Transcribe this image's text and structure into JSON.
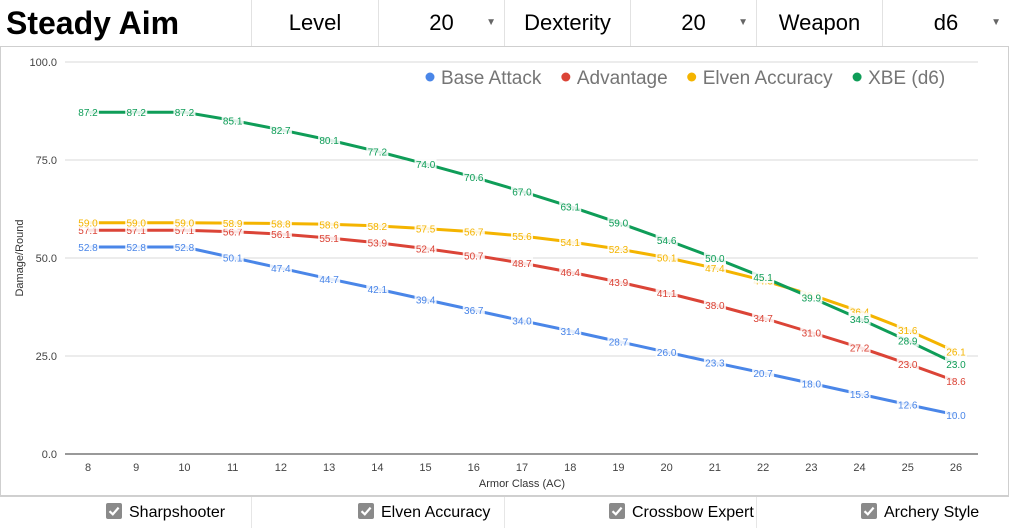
{
  "header": {
    "title": "Steady Aim",
    "level_label": "Level",
    "level_value": "20",
    "dex_label": "Dexterity",
    "dex_value": "20",
    "weapon_label": "Weapon",
    "weapon_value": "d6"
  },
  "footer": {
    "checkboxes": [
      {
        "label": "Sharpshooter",
        "checked": true
      },
      {
        "label": "Elven Accuracy",
        "checked": true
      },
      {
        "label": "Crossbow Expert",
        "checked": true
      },
      {
        "label": "Archery Style",
        "checked": true
      }
    ]
  },
  "chart_data": {
    "type": "line",
    "title": "",
    "xlabel": "Armor Class (AC)",
    "ylabel": "Damage/Round",
    "x": [
      8,
      9,
      10,
      11,
      12,
      13,
      14,
      15,
      16,
      17,
      18,
      19,
      20,
      21,
      22,
      23,
      24,
      25,
      26
    ],
    "ylim": [
      0,
      100
    ],
    "yticks": [
      "0.0",
      "25.0",
      "50.0",
      "75.0",
      "100.0"
    ],
    "grid": true,
    "legend": "top-right",
    "series": [
      {
        "name": "Base Attack",
        "color": "#4a86e8",
        "values": [
          52.8,
          52.8,
          52.8,
          50.1,
          47.4,
          44.7,
          42.1,
          39.4,
          36.7,
          34.0,
          31.4,
          28.7,
          26.0,
          23.3,
          20.7,
          18.0,
          15.3,
          12.6,
          10.0
        ],
        "labels": [
          "52.8",
          "52.8",
          "52.8",
          "50.1",
          "47.4",
          "44.7",
          "42.1",
          "39.4",
          "36.7",
          "34.0",
          "31.4",
          "28.7",
          "26.0",
          "23.3",
          "20.7",
          "18.0",
          "15.3",
          "12.6",
          "10.0"
        ]
      },
      {
        "name": "Advantage",
        "color": "#db4437",
        "values": [
          57.1,
          57.1,
          57.1,
          56.7,
          56.1,
          55.1,
          53.9,
          52.4,
          50.7,
          48.7,
          46.4,
          43.9,
          41.1,
          38.0,
          34.7,
          31.0,
          27.2,
          23.0,
          18.6
        ],
        "labels": [
          "57.1",
          "57.1",
          "57.1",
          "56.7",
          "56.1",
          "55.1",
          "53.9",
          "52.4",
          "50.7",
          "48.7",
          "46.4",
          "43.9",
          "41.1",
          "38.0",
          "34.7",
          "31.0",
          "27.2",
          "23.0",
          "18.6"
        ]
      },
      {
        "name": "Elven Accuracy",
        "color": "#f4b400",
        "values": [
          59.0,
          59.0,
          59.0,
          58.9,
          58.8,
          58.6,
          58.2,
          57.5,
          56.7,
          55.6,
          54.1,
          52.3,
          50.1,
          47.4,
          44.3,
          40.6,
          36.4,
          31.6,
          26.1
        ],
        "labels": [
          "59.0",
          "59.0",
          "59.0",
          "58.9",
          "58.8",
          "58.6",
          "58.2",
          "57.5",
          "56.7",
          "55.6",
          "54.1",
          "52.3",
          "50.1",
          "47.4",
          "44.3",
          "40.6",
          "36.4",
          "31.6",
          "26.1"
        ]
      },
      {
        "name": "XBE (d6)",
        "color": "#0f9d58",
        "values": [
          87.2,
          87.2,
          87.2,
          85.1,
          82.7,
          80.1,
          77.2,
          74.0,
          70.6,
          67.0,
          63.1,
          59.0,
          54.6,
          50.0,
          45.1,
          39.9,
          34.5,
          28.9,
          23.0
        ],
        "labels": [
          "87.2",
          "87.2",
          "87.2",
          "85.1",
          "82.7",
          "80.1",
          "77.2",
          "74.0",
          "70.6",
          "67.0",
          "63.1",
          "59.0",
          "54.6",
          "50.0",
          "45.1",
          "39.9",
          "34.5",
          "28.9",
          "23.0"
        ]
      }
    ]
  }
}
